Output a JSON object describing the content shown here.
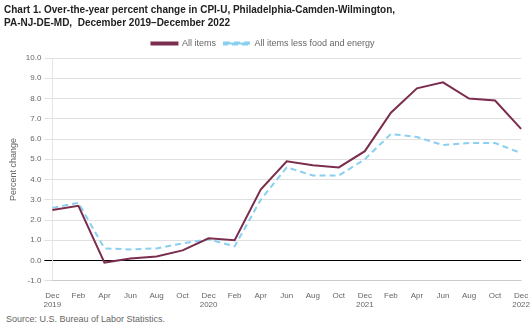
{
  "chart_data": {
    "type": "line",
    "title": "Chart 1. Over-the-year percent change in CPI-U, Philadelphia-Camden-Wilmington,",
    "subtitle": "PA-NJ-DE-MD,  December 2019–December 2022",
    "y_label": "Percent change",
    "source": "Source: U.S. Bureau of Labor Statistics.",
    "categories": [
      "Dec\n2019",
      "Feb",
      "Apr",
      "Jun",
      "Aug",
      "Oct",
      "Dec\n2020",
      "Feb",
      "Apr",
      "Jun",
      "Aug",
      "Oct",
      "Dec\n2021",
      "Feb",
      "Apr",
      "Jun",
      "Aug",
      "Oct",
      "Dec\n2022"
    ],
    "series": [
      {
        "name": "All items",
        "color": "#7B2D4E",
        "line_style": "solid",
        "values": [
          2.5,
          2.7,
          -0.1,
          0.1,
          0.2,
          0.5,
          1.1,
          1.0,
          3.5,
          4.9,
          4.7,
          4.6,
          5.4,
          7.3,
          8.5,
          8.8,
          8.0,
          7.9,
          6.5
        ]
      },
      {
        "name": "All items less food and energy",
        "color": "#89CFF0",
        "line_style": "dashed",
        "values": [
          2.6,
          2.85,
          0.6,
          0.55,
          0.6,
          0.85,
          1.05,
          0.7,
          3.0,
          4.6,
          4.2,
          4.2,
          5.0,
          6.25,
          6.1,
          5.7,
          5.8,
          5.8,
          5.3
        ]
      }
    ],
    "ylim": [
      -1.0,
      10.0
    ],
    "yticks": [
      {
        "value": -1.0,
        "label": "-1.0"
      },
      {
        "value": 0.0,
        "label": "0.0"
      },
      {
        "value": 1.0,
        "label": "1.0"
      },
      {
        "value": 2.0,
        "label": "2.0"
      },
      {
        "value": 3.0,
        "label": "3.0"
      },
      {
        "value": 4.0,
        "label": "4.0"
      },
      {
        "value": 5.0,
        "label": "5.0"
      },
      {
        "value": 6.0,
        "label": "6.0"
      },
      {
        "value": 7.0,
        "label": "7.0"
      },
      {
        "value": 8.0,
        "label": "8.0"
      },
      {
        "value": 9.0,
        "label": "9.0"
      },
      {
        "value": 10.0,
        "label": "10.0"
      }
    ],
    "grid": true,
    "legend": "top"
  }
}
